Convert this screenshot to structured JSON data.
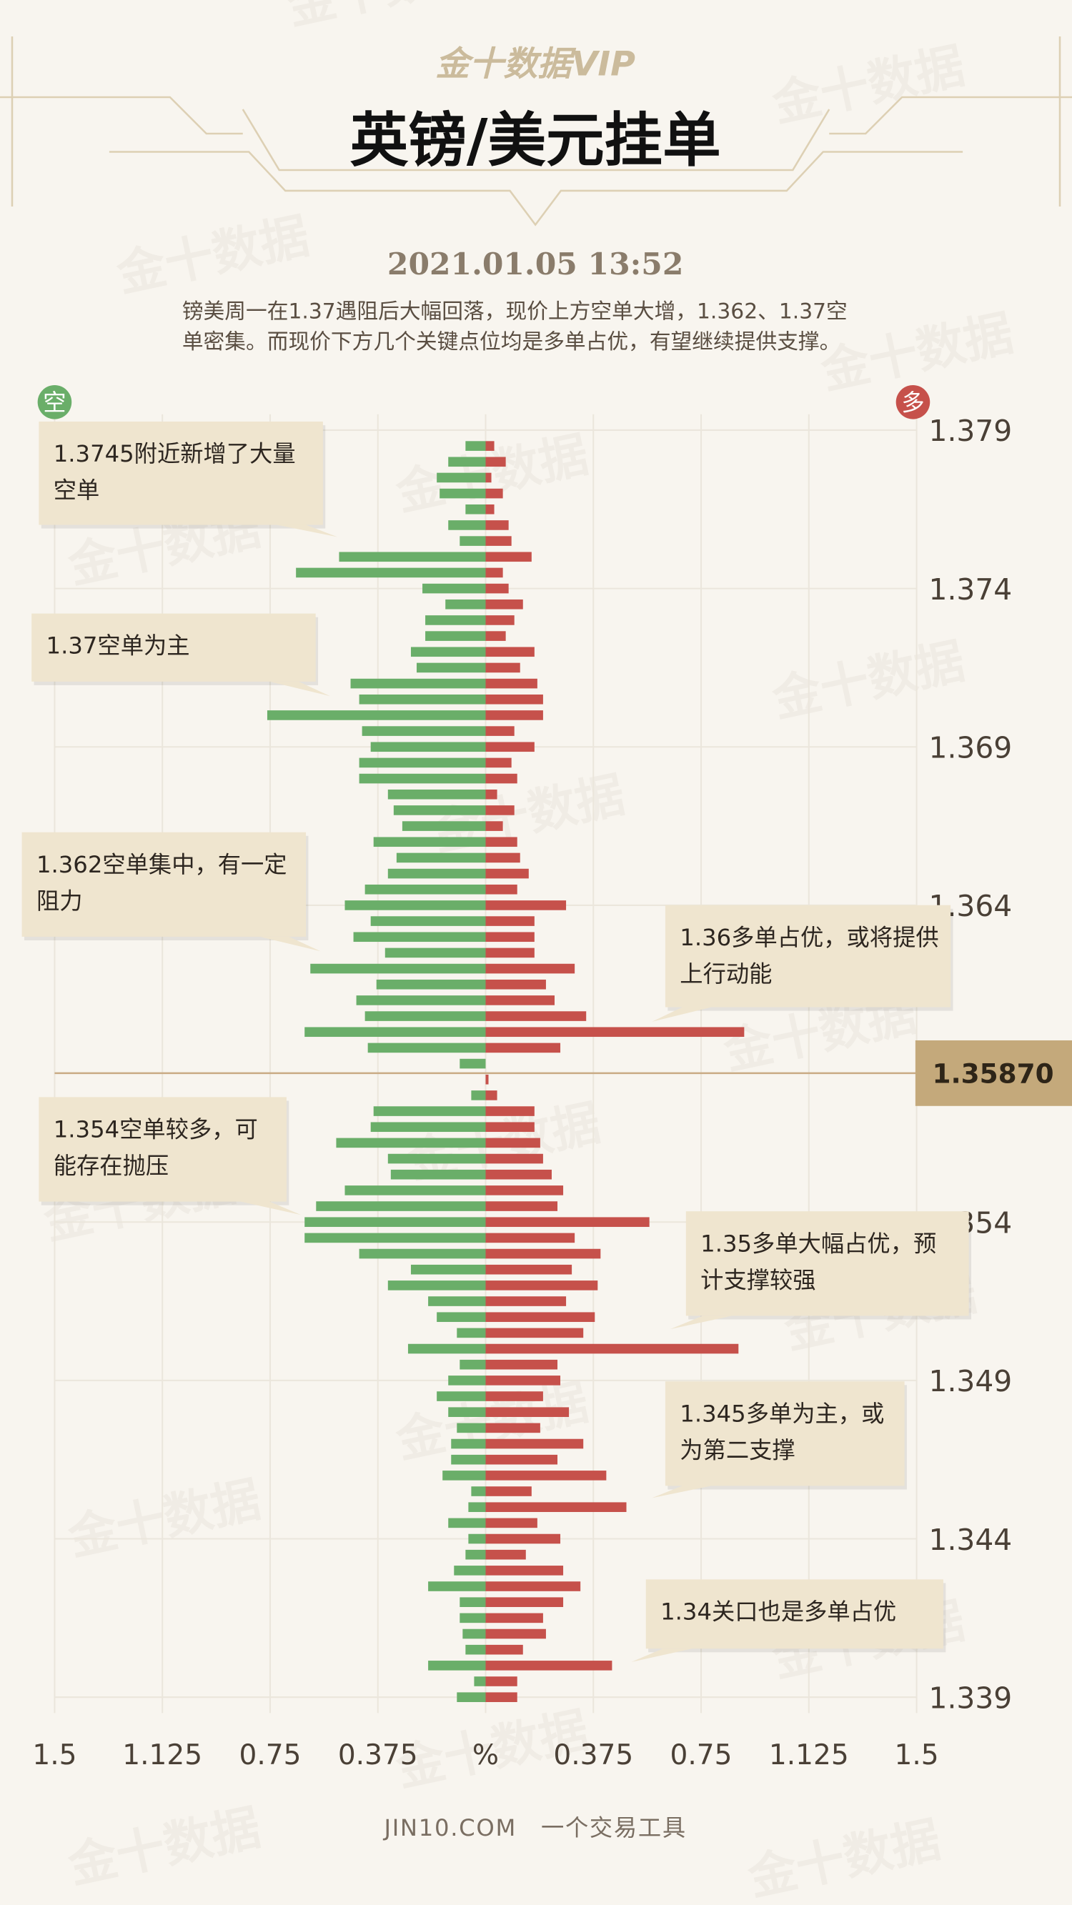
{
  "chart_data": {
    "type": "bar",
    "orientation": "horizontal",
    "logo": "金十数据VIP",
    "title": "英镑/美元挂单",
    "subtitle": "2021.01.05 13:52",
    "description": "镑美周一在1.37遇阻后大幅回落，现价上方空单大增，1.362、1.37空单密集。而现价下方几个关键点位均是多单占优，有望继续提供支撑。",
    "watermark": "金十数据",
    "footer": "JIN10.COM　一个交易工具",
    "y": [
      1.3785,
      1.378,
      1.3775,
      1.377,
      1.3765,
      1.376,
      1.3755,
      1.375,
      1.3745,
      1.374,
      1.3735,
      1.373,
      1.3725,
      1.372,
      1.3715,
      1.371,
      1.3705,
      1.37,
      1.3695,
      1.369,
      1.3685,
      1.368,
      1.3675,
      1.367,
      1.3665,
      1.366,
      1.3655,
      1.365,
      1.3645,
      1.364,
      1.3635,
      1.363,
      1.3625,
      1.362,
      1.3615,
      1.361,
      1.3605,
      1.36,
      1.3595,
      1.359,
      1.3585,
      1.358,
      1.3575,
      1.357,
      1.3565,
      1.356,
      1.3555,
      1.355,
      1.3545,
      1.354,
      1.3535,
      1.353,
      1.3525,
      1.352,
      1.3515,
      1.351,
      1.3505,
      1.35,
      1.3495,
      1.349,
      1.3485,
      1.348,
      1.3475,
      1.347,
      1.3465,
      1.346,
      1.3455,
      1.345,
      1.3445,
      1.344,
      1.3435,
      1.343,
      1.3425,
      1.342,
      1.3415,
      1.341,
      1.3405,
      1.34,
      1.3395,
      1.339
    ],
    "series": [
      {
        "name": "空",
        "color": "#6aae69",
        "values": [
          -0.07,
          -0.13,
          -0.17,
          -0.16,
          -0.07,
          -0.13,
          -0.09,
          -0.51,
          -0.66,
          -0.22,
          -0.14,
          -0.21,
          -0.21,
          -0.26,
          -0.24,
          -0.47,
          -0.44,
          -0.76,
          -0.43,
          -0.4,
          -0.44,
          -0.44,
          -0.34,
          -0.32,
          -0.29,
          -0.39,
          -0.31,
          -0.34,
          -0.42,
          -0.49,
          -0.4,
          -0.46,
          -0.35,
          -0.61,
          -0.38,
          -0.45,
          -0.42,
          -0.63,
          -0.41,
          -0.09,
          0,
          -0.05,
          -0.39,
          -0.4,
          -0.52,
          -0.34,
          -0.33,
          -0.49,
          -0.59,
          -0.63,
          -0.63,
          -0.44,
          -0.26,
          -0.34,
          -0.2,
          -0.17,
          -0.1,
          -0.27,
          -0.09,
          -0.13,
          -0.17,
          -0.13,
          -0.1,
          -0.12,
          -0.12,
          -0.15,
          -0.05,
          -0.06,
          -0.13,
          -0.06,
          -0.07,
          -0.11,
          -0.2,
          -0.09,
          -0.09,
          -0.08,
          -0.07,
          -0.2,
          -0.04,
          -0.1
        ]
      },
      {
        "name": "多",
        "color": "#c6514b",
        "values": [
          0.03,
          0.07,
          0.02,
          0.06,
          0.03,
          0.08,
          0.09,
          0.16,
          0.06,
          0.08,
          0.13,
          0.1,
          0.07,
          0.17,
          0.12,
          0.18,
          0.2,
          0.2,
          0.1,
          0.17,
          0.09,
          0.11,
          0.04,
          0.1,
          0.06,
          0.11,
          0.12,
          0.15,
          0.11,
          0.28,
          0.17,
          0.17,
          0.17,
          0.31,
          0.21,
          0.24,
          0.35,
          0.9,
          0.26,
          0,
          0.01,
          0.04,
          0.17,
          0.17,
          0.19,
          0.2,
          0.23,
          0.27,
          0.25,
          0.57,
          0.31,
          0.4,
          0.3,
          0.39,
          0.28,
          0.38,
          0.34,
          0.88,
          0.25,
          0.26,
          0.2,
          0.29,
          0.19,
          0.34,
          0.25,
          0.42,
          0.16,
          0.49,
          0.18,
          0.26,
          0.14,
          0.27,
          0.33,
          0.27,
          0.2,
          0.21,
          0.13,
          0.44,
          0.11,
          0.11
        ]
      }
    ],
    "xlim": [
      -1.5,
      1.5
    ],
    "xticks": [
      {
        "value": -1.5,
        "label": "1.5"
      },
      {
        "value": -1.125,
        "label": "1.125"
      },
      {
        "value": -0.75,
        "label": "0.75"
      },
      {
        "value": -0.375,
        "label": "0.375"
      },
      {
        "value": 0,
        "label": "%"
      },
      0.375,
      0.75,
      1.125,
      1.5
    ],
    "ylim": [
      1.3385,
      1.3795
    ],
    "yticks": [
      1.379,
      1.374,
      1.369,
      1.364,
      1.354,
      1.349,
      1.344,
      1.339
    ],
    "grid": true,
    "current_price": {
      "value": 1.3587,
      "label": "1.35870"
    },
    "annotations": [
      {
        "text": "1.3745附近新增了大量空单"
      },
      {
        "text": "1.37空单为主"
      },
      {
        "text": "1.362空单集中，有一定阻力"
      },
      {
        "text": "1.36多单占优，或将提供上行动能"
      },
      {
        "text": "1.354空单较多，可能存在抛压"
      },
      {
        "text": "1.35多单大幅占优，预计支撑较强"
      },
      {
        "text": "1.345多单为主，或为第二支撑"
      },
      {
        "text": "1.34关口也是多单占优"
      }
    ]
  }
}
